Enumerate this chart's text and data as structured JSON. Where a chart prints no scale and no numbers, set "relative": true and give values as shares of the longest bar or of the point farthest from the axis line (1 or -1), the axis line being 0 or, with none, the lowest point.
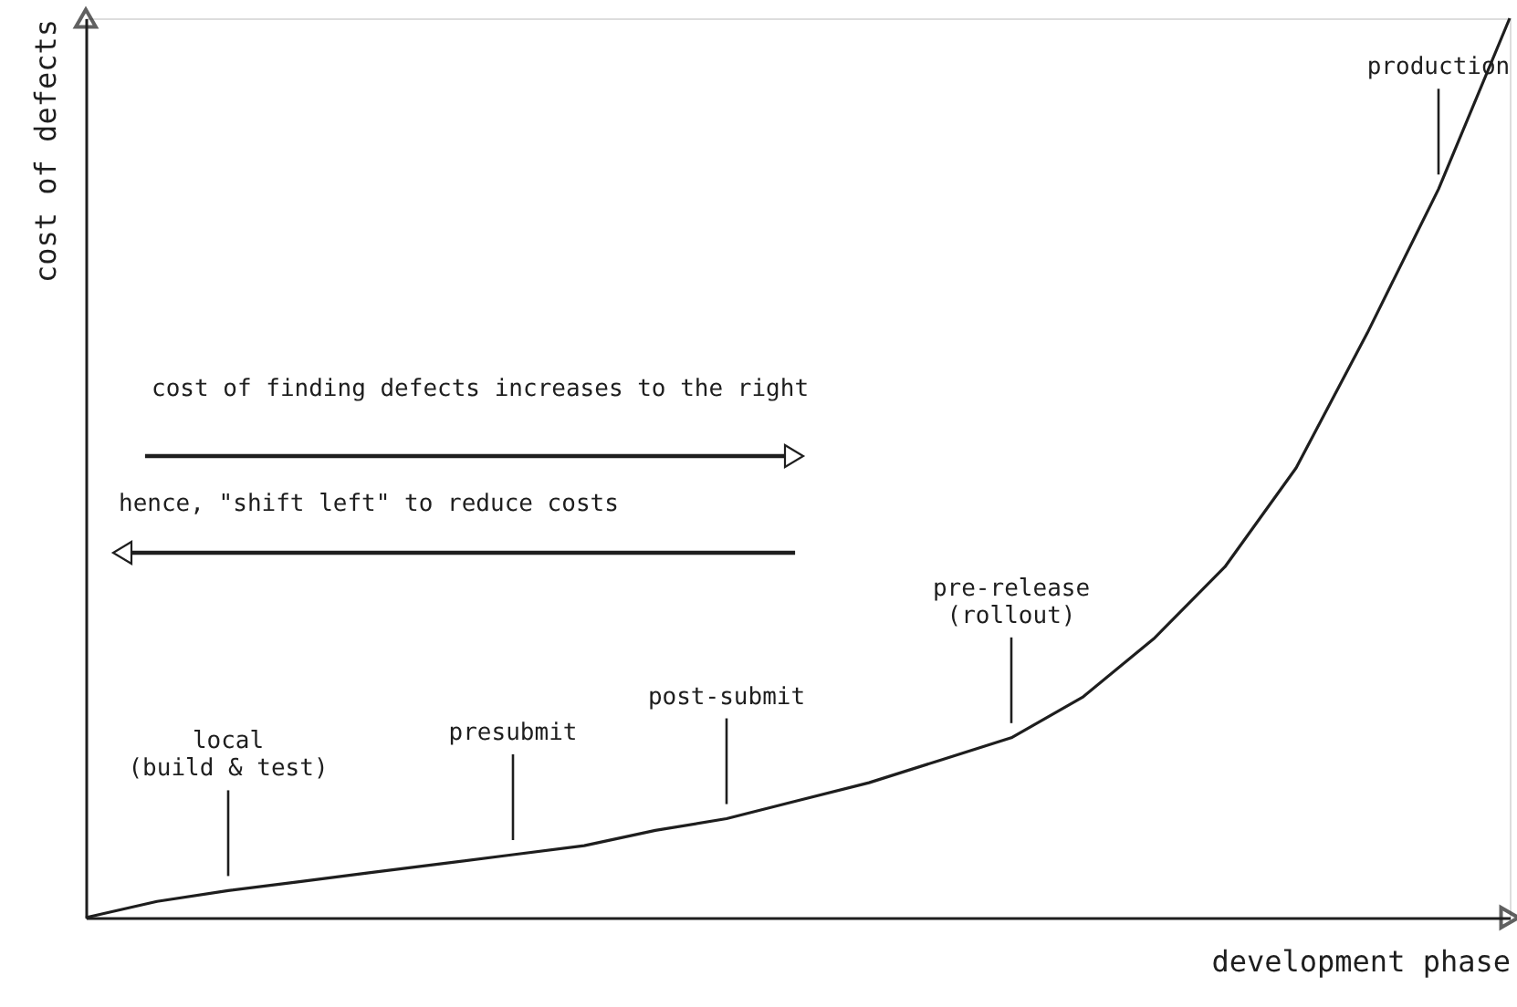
{
  "chart_data": {
    "type": "line",
    "relative": true,
    "xlabel": "development phase",
    "ylabel": "cost of defects",
    "categories": [
      null,
      null,
      null,
      null,
      null,
      null,
      null,
      null,
      null,
      null,
      null,
      null,
      null,
      null,
      null,
      null,
      null,
      null,
      null,
      null,
      null
    ],
    "series": [
      {
        "color": "#1e1e1e",
        "values": [
          0,
          0.018,
          0.03,
          0.04,
          0.05,
          0.06,
          0.07,
          0.08,
          0.097,
          0.11,
          0.13,
          0.15,
          0.175,
          0.2,
          0.245,
          0.31,
          0.39,
          0.5,
          0.65,
          0.81,
          1.0
        ]
      }
    ],
    "annotations": [
      {
        "text": "local\n(build & test)",
        "y": 0.03
      },
      {
        "text": "presubmit",
        "y": 0.07
      },
      {
        "text": "post-submit",
        "y": 0.11
      },
      {
        "text": "pre-release\n(rollout)",
        "y": 0.2
      },
      {
        "text": "production",
        "y": 0.81
      },
      "cost of finding defects increases to the right",
      "hence, \"shift left\" to reduce costs"
    ]
  }
}
